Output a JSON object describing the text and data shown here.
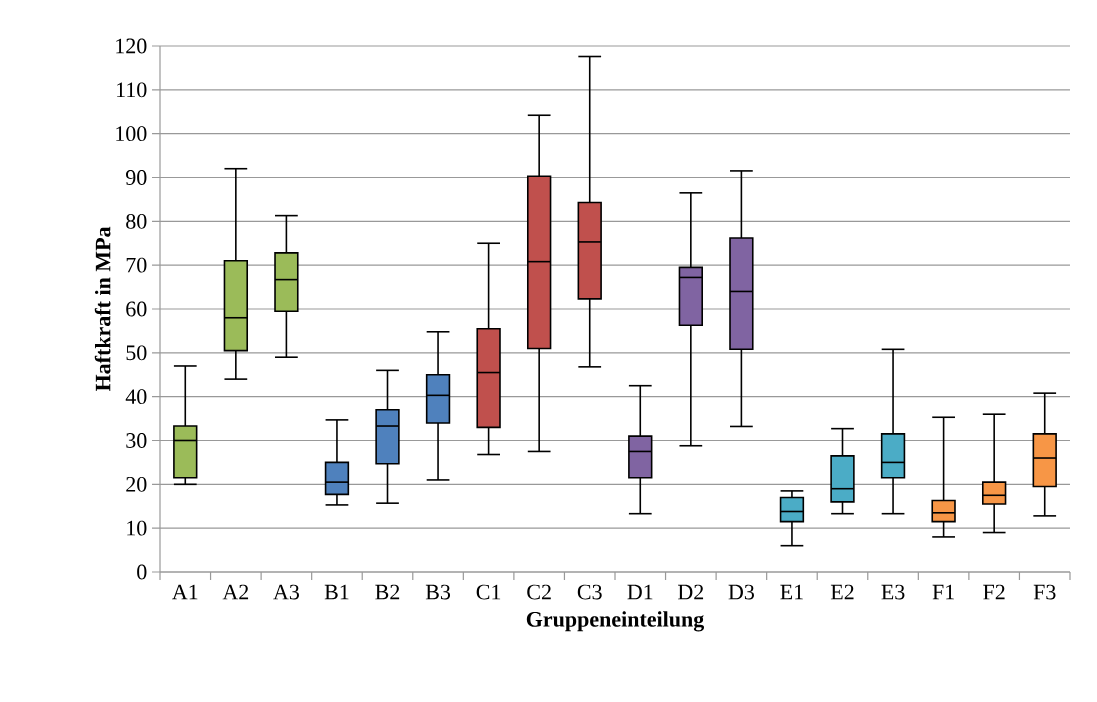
{
  "chart_data": {
    "type": "box",
    "xlabel": "Gruppeneinteilung",
    "ylabel": "Haftkraft in MPa",
    "categories": [
      "A1",
      "A2",
      "A3",
      "B1",
      "B2",
      "B3",
      "C1",
      "C2",
      "C3",
      "D1",
      "D2",
      "D3",
      "E1",
      "E2",
      "E3",
      "F1",
      "F2",
      "F3"
    ],
    "colors": [
      "#9bbb59",
      "#9bbb59",
      "#9bbb59",
      "#4f81bd",
      "#4f81bd",
      "#4f81bd",
      "#c0504d",
      "#c0504d",
      "#c0504d",
      "#8064a2",
      "#8064a2",
      "#8064a2",
      "#4bacc6",
      "#4bacc6",
      "#4bacc6",
      "#f79646",
      "#f79646",
      "#f79646"
    ],
    "boxes": [
      {
        "low": 20,
        "q1": 21.5,
        "median": 30,
        "q3": 33.3,
        "high": 47
      },
      {
        "low": 44,
        "q1": 50.5,
        "median": 58,
        "q3": 71,
        "high": 92
      },
      {
        "low": 49,
        "q1": 59.5,
        "median": 66.7,
        "q3": 72.8,
        "high": 81.3
      },
      {
        "low": 15.3,
        "q1": 17.7,
        "median": 20.5,
        "q3": 25,
        "high": 34.7
      },
      {
        "low": 15.7,
        "q1": 24.7,
        "median": 33.3,
        "q3": 37,
        "high": 46
      },
      {
        "low": 21,
        "q1": 34,
        "median": 40.3,
        "q3": 45,
        "high": 54.8
      },
      {
        "low": 26.8,
        "q1": 33,
        "median": 45.5,
        "q3": 55.5,
        "high": 75
      },
      {
        "low": 27.5,
        "q1": 51,
        "median": 70.8,
        "q3": 90.3,
        "high": 104.2
      },
      {
        "low": 46.8,
        "q1": 62.3,
        "median": 75.3,
        "q3": 84.3,
        "high": 117.6
      },
      {
        "low": 13.3,
        "q1": 21.5,
        "median": 27.5,
        "q3": 31,
        "high": 42.5
      },
      {
        "low": 28.8,
        "q1": 56.3,
        "median": 67.2,
        "q3": 69.5,
        "high": 86.5
      },
      {
        "low": 33.2,
        "q1": 50.8,
        "median": 64,
        "q3": 76.2,
        "high": 91.5
      },
      {
        "low": 6,
        "q1": 11.5,
        "median": 13.8,
        "q3": 17,
        "high": 18.5
      },
      {
        "low": 13.3,
        "q1": 16,
        "median": 19,
        "q3": 26.5,
        "high": 32.7
      },
      {
        "low": 13.3,
        "q1": 21.5,
        "median": 25,
        "q3": 31.5,
        "high": 50.8
      },
      {
        "low": 8,
        "q1": 11.5,
        "median": 13.5,
        "q3": 16.3,
        "high": 35.3
      },
      {
        "low": 9,
        "q1": 15.5,
        "median": 17.5,
        "q3": 20.5,
        "high": 36
      },
      {
        "low": 12.8,
        "q1": 19.5,
        "median": 26,
        "q3": 31.5,
        "high": 40.8
      }
    ],
    "ylim": [
      0,
      120
    ],
    "yticks": [
      0,
      10,
      20,
      30,
      40,
      50,
      60,
      70,
      80,
      90,
      100,
      110,
      120
    ],
    "grid": "y"
  }
}
